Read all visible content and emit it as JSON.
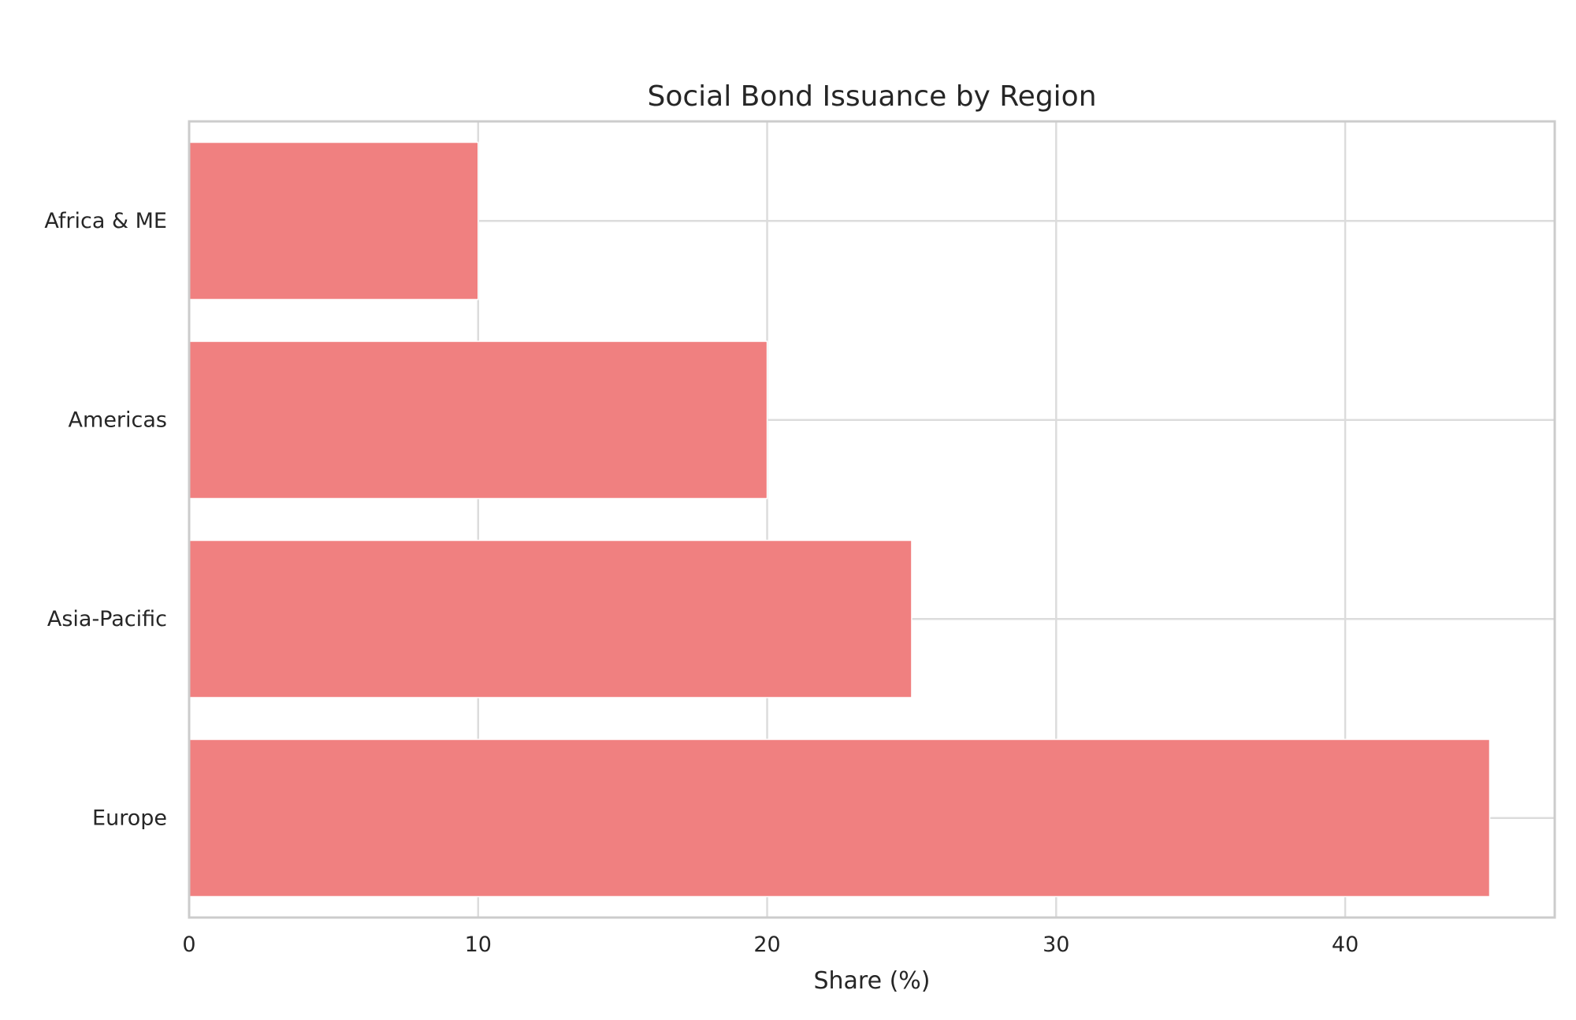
{
  "chart_data": {
    "type": "bar",
    "orientation": "horizontal",
    "title": "Social Bond Issuance by Region",
    "xlabel": "Share (%)",
    "ylabel": "",
    "categories": [
      "Europe",
      "Asia-Pacific",
      "Americas",
      "Africa & ME"
    ],
    "values": [
      45,
      25,
      20,
      10
    ],
    "xlim": [
      0,
      47.25
    ],
    "xticks": [
      0,
      10,
      20,
      30,
      40
    ],
    "grid": true,
    "legend": "none",
    "bar_color": "#f08080"
  }
}
